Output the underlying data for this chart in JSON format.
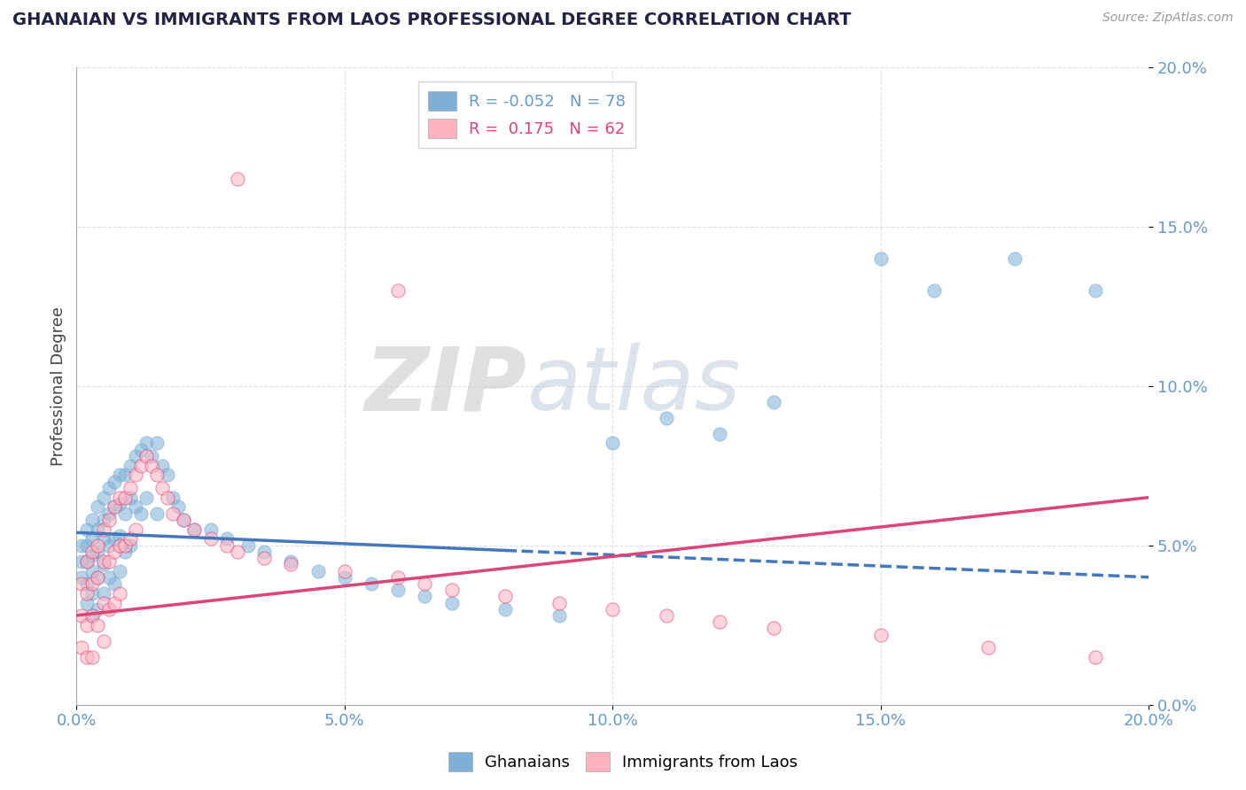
{
  "title": "GHANAIAN VS IMMIGRANTS FROM LAOS PROFESSIONAL DEGREE CORRELATION CHART",
  "source_text": "Source: ZipAtlas.com",
  "ylabel": "Professional Degree",
  "legend_entries": [
    {
      "label": "R = -0.052   N = 78",
      "color": "#7EB0D5"
    },
    {
      "label": "R =  0.175   N = 62",
      "color": "#FF9999"
    }
  ],
  "legend_label1": "Ghanaians",
  "legend_label2": "Immigrants from Laos",
  "color_blue": "#7EB0D5",
  "color_pink": "#FFB3C1",
  "color_blue_line": "#4477BB",
  "color_pink_line": "#DD4477",
  "axis_color": "#6699CC",
  "xlim": [
    0.0,
    0.2
  ],
  "ylim": [
    0.0,
    0.2
  ],
  "xticks": [
    0.0,
    0.05,
    0.1,
    0.15,
    0.2
  ],
  "yticks": [
    0.0,
    0.05,
    0.1,
    0.15,
    0.2
  ],
  "blue_scatter_x": [
    0.001,
    0.001,
    0.001,
    0.002,
    0.002,
    0.002,
    0.002,
    0.002,
    0.003,
    0.003,
    0.003,
    0.003,
    0.003,
    0.003,
    0.004,
    0.004,
    0.004,
    0.004,
    0.004,
    0.005,
    0.005,
    0.005,
    0.005,
    0.005,
    0.006,
    0.006,
    0.006,
    0.006,
    0.007,
    0.007,
    0.007,
    0.007,
    0.008,
    0.008,
    0.008,
    0.008,
    0.009,
    0.009,
    0.009,
    0.01,
    0.01,
    0.01,
    0.011,
    0.011,
    0.012,
    0.012,
    0.013,
    0.013,
    0.014,
    0.015,
    0.015,
    0.016,
    0.017,
    0.018,
    0.019,
    0.02,
    0.022,
    0.025,
    0.028,
    0.032,
    0.035,
    0.04,
    0.045,
    0.05,
    0.055,
    0.06,
    0.065,
    0.07,
    0.08,
    0.09,
    0.1,
    0.11,
    0.12,
    0.13,
    0.15,
    0.16,
    0.175,
    0.19
  ],
  "blue_scatter_y": [
    0.05,
    0.045,
    0.04,
    0.055,
    0.05,
    0.045,
    0.038,
    0.032,
    0.058,
    0.052,
    0.047,
    0.042,
    0.035,
    0.028,
    0.062,
    0.055,
    0.048,
    0.04,
    0.03,
    0.065,
    0.058,
    0.052,
    0.044,
    0.035,
    0.068,
    0.06,
    0.05,
    0.04,
    0.07,
    0.062,
    0.052,
    0.038,
    0.072,
    0.063,
    0.053,
    0.042,
    0.072,
    0.06,
    0.048,
    0.075,
    0.065,
    0.05,
    0.078,
    0.062,
    0.08,
    0.06,
    0.082,
    0.065,
    0.078,
    0.082,
    0.06,
    0.075,
    0.072,
    0.065,
    0.062,
    0.058,
    0.055,
    0.055,
    0.052,
    0.05,
    0.048,
    0.045,
    0.042,
    0.04,
    0.038,
    0.036,
    0.034,
    0.032,
    0.03,
    0.028,
    0.082,
    0.09,
    0.085,
    0.095,
    0.14,
    0.13,
    0.14,
    0.13
  ],
  "pink_scatter_x": [
    0.001,
    0.001,
    0.001,
    0.002,
    0.002,
    0.002,
    0.002,
    0.003,
    0.003,
    0.003,
    0.003,
    0.004,
    0.004,
    0.004,
    0.005,
    0.005,
    0.005,
    0.005,
    0.006,
    0.006,
    0.006,
    0.007,
    0.007,
    0.007,
    0.008,
    0.008,
    0.008,
    0.009,
    0.009,
    0.01,
    0.01,
    0.011,
    0.011,
    0.012,
    0.013,
    0.014,
    0.015,
    0.016,
    0.017,
    0.018,
    0.02,
    0.022,
    0.025,
    0.028,
    0.03,
    0.035,
    0.04,
    0.05,
    0.06,
    0.065,
    0.07,
    0.08,
    0.09,
    0.1,
    0.11,
    0.12,
    0.13,
    0.15,
    0.17,
    0.19,
    0.06,
    0.03
  ],
  "pink_scatter_y": [
    0.038,
    0.028,
    0.018,
    0.045,
    0.035,
    0.025,
    0.015,
    0.048,
    0.038,
    0.028,
    0.015,
    0.05,
    0.04,
    0.025,
    0.055,
    0.045,
    0.032,
    0.02,
    0.058,
    0.045,
    0.03,
    0.062,
    0.048,
    0.032,
    0.065,
    0.05,
    0.035,
    0.065,
    0.05,
    0.068,
    0.052,
    0.072,
    0.055,
    0.075,
    0.078,
    0.075,
    0.072,
    0.068,
    0.065,
    0.06,
    0.058,
    0.055,
    0.052,
    0.05,
    0.048,
    0.046,
    0.044,
    0.042,
    0.04,
    0.038,
    0.036,
    0.034,
    0.032,
    0.03,
    0.028,
    0.026,
    0.024,
    0.022,
    0.018,
    0.015,
    0.13,
    0.165
  ],
  "blue_line_x": [
    0.0,
    0.2
  ],
  "blue_line_y": [
    0.054,
    0.04
  ],
  "pink_line_x": [
    0.0,
    0.2
  ],
  "pink_line_y": [
    0.028,
    0.065
  ]
}
